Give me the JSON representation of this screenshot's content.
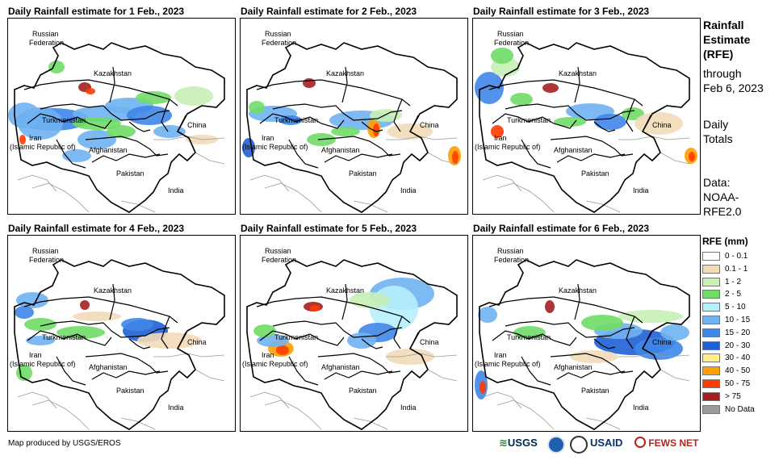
{
  "panels": [
    {
      "title": "Daily Rainfall estimate for 1 Feb., 2023"
    },
    {
      "title": "Daily Rainfall estimate for 2 Feb., 2023"
    },
    {
      "title": "Daily Rainfall estimate for 3 Feb., 2023"
    },
    {
      "title": "Daily Rainfall estimate for 4 Feb., 2023"
    },
    {
      "title": "Daily Rainfall estimate for 5 Feb., 2023"
    },
    {
      "title": "Daily Rainfall estimate for 6 Feb., 2023"
    }
  ],
  "map_labels": {
    "russia_1": "Russian",
    "russia_2": "Federation",
    "kazakhstan": "Kazakhstan",
    "turkmenistan": "Turkmenistan",
    "iran_1": "Iran",
    "iran_2": "(Islamic Republic of)",
    "afghanistan": "Afghanistan",
    "pakistan": "Pakistan",
    "china": "China",
    "india": "India"
  },
  "side": {
    "title_lines": [
      "Rainfall",
      "Estimate",
      "(RFE)"
    ],
    "through": "through",
    "through_date": "Feb 6, 2023",
    "totals_1": "Daily",
    "totals_2": "Totals",
    "data_1": "Data:",
    "data_2": "NOAA-",
    "data_3": "RFE2.0"
  },
  "legend": {
    "title": "RFE (mm)",
    "items": [
      {
        "label": "0 - 0.1",
        "color": "#ffffff"
      },
      {
        "label": "0.1 - 1",
        "color": "#f2dcb8"
      },
      {
        "label": "1 - 2",
        "color": "#c7f0b5"
      },
      {
        "label": "2 - 5",
        "color": "#6fdc66"
      },
      {
        "label": "5 - 10",
        "color": "#b7effb"
      },
      {
        "label": "10 - 15",
        "color": "#6fb3f2"
      },
      {
        "label": "15 - 20",
        "color": "#3f86e8"
      },
      {
        "label": "20 - 30",
        "color": "#1f5fd6"
      },
      {
        "label": "30 - 40",
        "color": "#fff08a"
      },
      {
        "label": "40 - 50",
        "color": "#ffa000"
      },
      {
        "label": "50 - 75",
        "color": "#ff3b00"
      },
      {
        "label": "> 75",
        "color": "#a51f1f"
      },
      {
        "label": "No Data",
        "color": "#9a9a9a"
      }
    ]
  },
  "credit": "Map produced by USGS/EROS",
  "logos": {
    "usgs": "USGS",
    "usaid": "USAID",
    "fewsnet": "FEWS NET"
  }
}
